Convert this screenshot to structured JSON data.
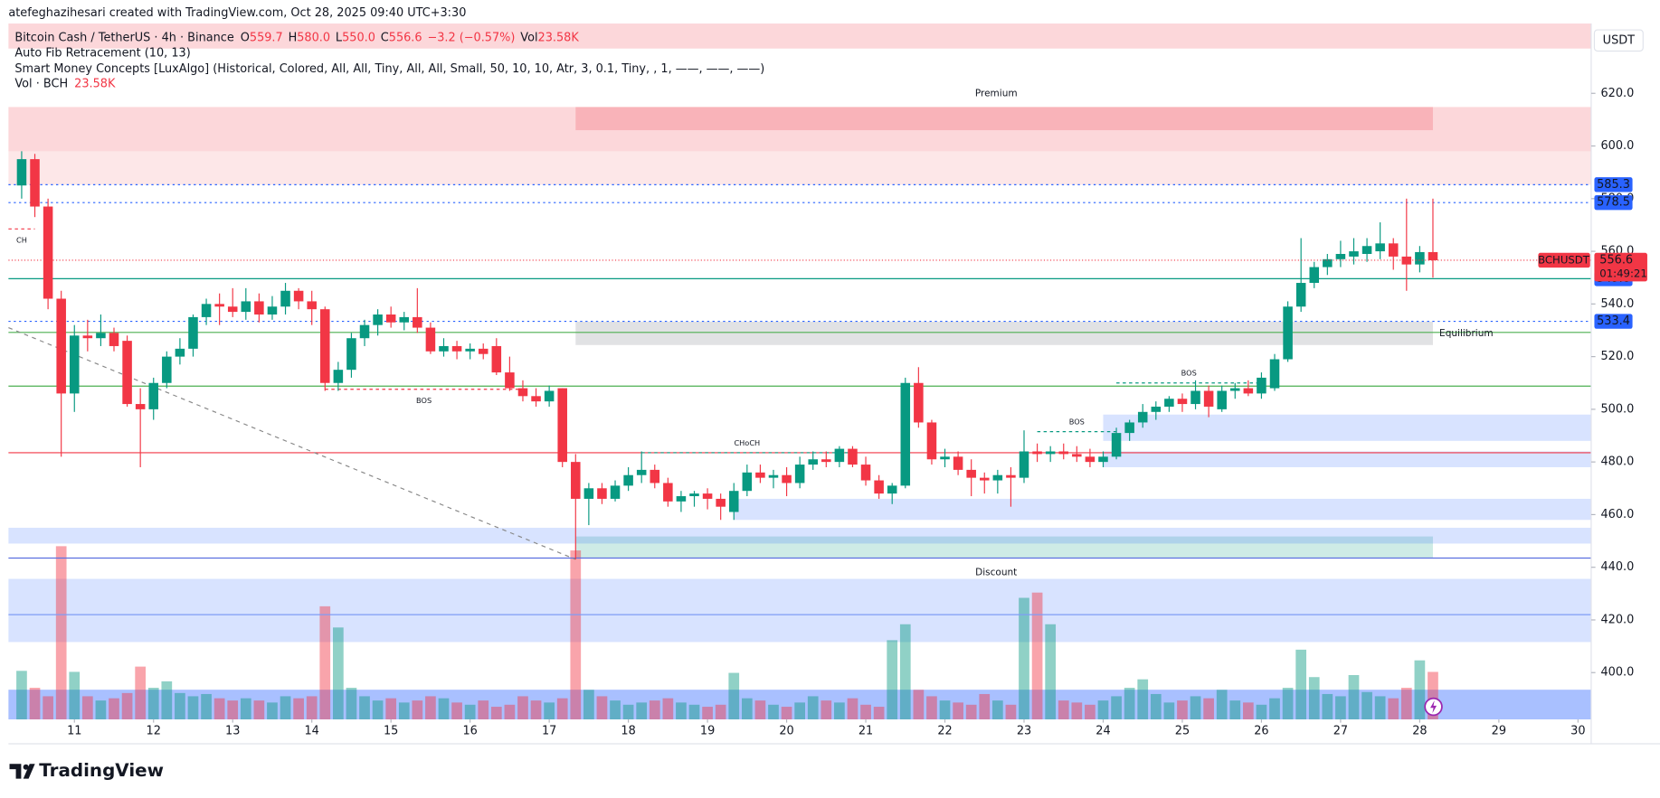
{
  "header": {
    "text": "atefeghazihesari created with TradingView.com, Oct 28, 2025 09:40 UTC+3:30",
    "currency": "USDT",
    "logo": "TradingView"
  },
  "legend": {
    "symbol": "Bitcoin Cash / TetherUS · 4h · Binance",
    "ohlc": [
      {
        "key": "O",
        "value": "559.7"
      },
      {
        "key": "H",
        "value": "580.0"
      },
      {
        "key": "L",
        "value": "550.0"
      },
      {
        "key": "C",
        "value": "556.6"
      }
    ],
    "change": "−3.2 (−0.57%)",
    "vol_key": "Vol",
    "vol_value": "23.58K",
    "indicators": [
      "Auto Fib Retracement (10, 13)",
      "Smart Money Concepts [LuxAlgo] (Historical, Colored, All, All, Tiny, All, All, Small, 50, 10, 10, Atr, 3, 0.1, Tiny, , 1, ——, ——, ——)"
    ],
    "vol_name": "Vol · BCH",
    "vol_line_value": "23.58K"
  },
  "chart_data": {
    "type": "candlestick",
    "up_color": "#089981",
    "down_color": "#f23645",
    "open": [
      585,
      595,
      577,
      542,
      506,
      528,
      527,
      529,
      526,
      502,
      500,
      510,
      520,
      523,
      535,
      540,
      539,
      537,
      541,
      536,
      539,
      545,
      541,
      538,
      510,
      515,
      527,
      532,
      536,
      533,
      535,
      531,
      522,
      524,
      522,
      523,
      524,
      514,
      508,
      505,
      503,
      508,
      480,
      466,
      470,
      466,
      471,
      475,
      477,
      472,
      465,
      467,
      468,
      466,
      461,
      469,
      476,
      474,
      475,
      472,
      479,
      481,
      480,
      485,
      479,
      473,
      468,
      471,
      510,
      495,
      481,
      482,
      477,
      474,
      473,
      475,
      474,
      484,
      483,
      484,
      483,
      482,
      480,
      482,
      491,
      495,
      499,
      501,
      504,
      502,
      507,
      500,
      507,
      508,
      506,
      508,
      519,
      539,
      548,
      554,
      557,
      558,
      559,
      560,
      563,
      558,
      555,
      559.7
    ],
    "high": [
      598,
      597,
      580,
      545,
      532,
      534,
      536,
      531,
      528,
      508,
      512,
      522,
      527,
      536,
      542,
      544,
      546,
      546,
      544,
      543,
      548,
      546,
      545,
      539,
      518,
      529,
      534,
      538,
      539,
      537,
      546,
      533,
      527,
      526,
      525,
      525,
      527,
      520,
      511,
      508,
      509,
      508,
      483,
      472,
      472,
      473,
      478,
      484,
      479,
      474,
      469,
      469,
      470,
      468,
      472,
      479,
      479,
      477,
      478,
      482,
      484,
      484,
      486,
      486,
      482,
      475,
      472,
      512,
      516,
      496,
      485,
      484,
      481,
      476,
      477,
      478,
      492,
      487,
      486,
      487,
      486,
      485,
      484,
      493,
      496,
      502,
      503,
      505,
      506,
      511,
      509,
      509,
      510,
      511,
      514,
      521,
      541,
      565,
      556,
      559,
      564,
      565,
      565,
      571,
      565,
      580,
      562,
      580
    ],
    "low": [
      580,
      573,
      538,
      482,
      499,
      522,
      524,
      522,
      501,
      478,
      496,
      508,
      517,
      520,
      532,
      532,
      535,
      534,
      533,
      534,
      536,
      538,
      532,
      507,
      507,
      512,
      524,
      528,
      531,
      530,
      529,
      521,
      520,
      519,
      519,
      519,
      513,
      507,
      503,
      501,
      501,
      478,
      443,
      456,
      464,
      465,
      469,
      472,
      470,
      463,
      461,
      463,
      462,
      458,
      458,
      467,
      472,
      470,
      467,
      470,
      477,
      478,
      478,
      478,
      471,
      466,
      464,
      470,
      493,
      479,
      478,
      475,
      467,
      468,
      468,
      463,
      472,
      480,
      480,
      481,
      480,
      478,
      478,
      481,
      488,
      493,
      496,
      499,
      499,
      500,
      497,
      499,
      504,
      505,
      504,
      507,
      518,
      537,
      546,
      551,
      554,
      555,
      556,
      557,
      553,
      545,
      552,
      550
    ],
    "close": [
      595,
      577,
      542,
      506,
      528,
      527,
      529,
      524,
      502,
      500,
      510,
      520,
      523,
      535,
      540,
      539,
      537,
      541,
      536,
      539,
      545,
      541,
      538,
      510,
      515,
      527,
      532,
      536,
      533,
      535,
      531,
      522,
      524,
      522,
      523,
      521,
      514,
      508,
      505,
      503,
      507,
      480,
      466,
      470,
      466,
      471,
      475,
      477,
      472,
      465,
      467,
      468,
      466,
      463,
      469,
      476,
      474,
      475,
      472,
      479,
      481,
      480,
      485,
      479,
      473,
      468,
      471,
      510,
      495,
      481,
      482,
      477,
      474,
      473,
      475,
      474,
      484,
      483,
      484,
      483,
      482,
      480,
      482,
      491,
      495,
      499,
      501,
      504,
      502,
      507,
      501,
      507,
      508,
      506,
      512,
      519,
      539,
      548,
      554,
      557,
      559,
      560,
      562,
      563,
      558,
      555,
      559.7,
      556.6
    ],
    "volume": [
      24100,
      15700,
      11500,
      85900,
      23600,
      11500,
      9400,
      10500,
      13100,
      26200,
      15700,
      18900,
      13100,
      11500,
      12600,
      10500,
      9400,
      10500,
      9400,
      8400,
      11500,
      10500,
      11500,
      56100,
      45600,
      15700,
      11500,
      9400,
      10500,
      8400,
      9400,
      11500,
      10500,
      8400,
      7300,
      9400,
      6300,
      7300,
      11500,
      9400,
      8400,
      10500,
      83800,
      14700,
      11500,
      9400,
      7300,
      8400,
      9400,
      10500,
      8400,
      7300,
      6300,
      7300,
      23100,
      10500,
      9400,
      7300,
      6300,
      8400,
      11500,
      9400,
      8400,
      10500,
      7300,
      6300,
      39300,
      47200,
      14700,
      11500,
      9400,
      8400,
      7300,
      12600,
      9400,
      7300,
      60300,
      62900,
      47200,
      9400,
      8400,
      7300,
      9400,
      11500,
      15700,
      19900,
      12600,
      8400,
      9400,
      11500,
      10500,
      14700,
      9400,
      8400,
      7300,
      10500,
      15700,
      34600,
      21000,
      12600,
      11500,
      22000,
      13600,
      11500,
      10500,
      15700,
      29300,
      23580
    ],
    "volume_ylim": [
      0,
      345000
    ],
    "xlim": [
      -1,
      119
    ],
    "xticks": [
      {
        "value": 4,
        "label": "11"
      },
      {
        "value": 10,
        "label": "12"
      },
      {
        "value": 16,
        "label": "13"
      },
      {
        "value": 22,
        "label": "14"
      },
      {
        "value": 28,
        "label": "15"
      },
      {
        "value": 34,
        "label": "16"
      },
      {
        "value": 40,
        "label": "17"
      },
      {
        "value": 46,
        "label": "18"
      },
      {
        "value": 52,
        "label": "19"
      },
      {
        "value": 58,
        "label": "20"
      },
      {
        "value": 64,
        "label": "21"
      },
      {
        "value": 70,
        "label": "22"
      },
      {
        "value": 76,
        "label": "23"
      },
      {
        "value": 82,
        "label": "24"
      },
      {
        "value": 88,
        "label": "25"
      },
      {
        "value": 94,
        "label": "26"
      },
      {
        "value": 100,
        "label": "27"
      },
      {
        "value": 106,
        "label": "28"
      },
      {
        "value": 112,
        "label": "29"
      },
      {
        "value": 118,
        "label": "30"
      }
    ],
    "ylim": [
      382.2,
      646.5
    ],
    "yticks": [
      {
        "value": 400,
        "label": "400.0"
      },
      {
        "value": 420,
        "label": "420.0"
      },
      {
        "value": 440,
        "label": "440.0"
      },
      {
        "value": 460,
        "label": "460.0"
      },
      {
        "value": 480,
        "label": "480.0"
      },
      {
        "value": 500,
        "label": "500.0"
      },
      {
        "value": 520,
        "label": "520.0"
      },
      {
        "value": 540,
        "label": "540.0"
      },
      {
        "value": 560,
        "label": "560.0"
      },
      {
        "value": 580,
        "label": "580.0"
      },
      {
        "value": 600,
        "label": "600.0"
      },
      {
        "value": 620,
        "label": "620.0"
      }
    ],
    "zones": [
      {
        "range": [
          637,
          646.5
        ],
        "x": [
          -1,
          119
        ],
        "color": "rgba(242,54,69,0.2)"
      },
      {
        "range": [
          598,
          614.8
        ],
        "x": [
          -1,
          119
        ],
        "color": "rgba(242,54,69,0.2)"
      },
      {
        "range": [
          606,
          614.8
        ],
        "x": [
          42,
          107
        ],
        "color": "rgba(242,54,69,0.22)"
      },
      {
        "range": [
          585.3,
          598
        ],
        "x": [
          -1,
          119
        ],
        "color": "rgba(242,54,69,0.12)"
      },
      {
        "range": [
          524.4,
          533.3
        ],
        "x": [
          42,
          107
        ],
        "color": "rgba(120,123,134,0.22)"
      },
      {
        "range": [
          443.4,
          451.7
        ],
        "x": [
          42,
          107
        ],
        "color": "rgba(8,153,129,0.2)"
      },
      {
        "range": [
          458,
          466
        ],
        "x": [
          54,
          119
        ],
        "color": "rgba(41,98,255,0.18)"
      },
      {
        "range": [
          449,
          455
        ],
        "x": [
          -1,
          119
        ],
        "color": "rgba(41,98,255,0.18)"
      },
      {
        "range": [
          488,
          498
        ],
        "x": [
          82,
          119
        ],
        "color": "rgba(41,98,255,0.18)"
      },
      {
        "range": [
          478,
          484
        ],
        "x": [
          82,
          119
        ],
        "color": "rgba(41,98,255,0.18)"
      },
      {
        "range": [
          411.6,
          435.6
        ],
        "x": [
          -1,
          119
        ],
        "color": "rgba(41,98,255,0.18)"
      },
      {
        "range": [
          382.2,
          393.5
        ],
        "x": [
          -1,
          119
        ],
        "color": "rgba(41,98,255,0.4)"
      }
    ],
    "lines": [
      {
        "value": 585.3,
        "color": "#2962ff",
        "style": "dotted",
        "tag": true
      },
      {
        "value": 578.5,
        "color": "#2962ff",
        "style": "dotted",
        "tag": true
      },
      {
        "value": 549.6,
        "color": "#089981",
        "style": "solid",
        "tag": true
      },
      {
        "value": 533.4,
        "color": "#2962ff",
        "style": "dotted",
        "tag": true
      },
      {
        "value": 529.2,
        "color": "#4caf50",
        "style": "solid",
        "tag": false
      },
      {
        "value": 508.8,
        "color": "#4caf50",
        "style": "solid",
        "tag": false
      },
      {
        "value": 483.5,
        "color": "#f23645",
        "style": "solid",
        "tag": false
      },
      {
        "value": 443.5,
        "color": "#5b6fe0",
        "style": "solid",
        "tag": false
      },
      {
        "value": 422,
        "color": "#7f9cf5",
        "style": "solid",
        "tag": false
      }
    ],
    "trendline": {
      "x": [
        -1,
        42
      ],
      "y": [
        531,
        443
      ],
      "color": "#888888"
    },
    "structures": [
      {
        "text": "CH",
        "value": 568.5,
        "x": [
          -1,
          1
        ],
        "color": "#f23645"
      },
      {
        "text": "BOS",
        "value": 507.6,
        "x": [
          23,
          38
        ],
        "color": "#f23645"
      },
      {
        "text": "CHoCH",
        "value": 483.5,
        "x": [
          47,
          63
        ],
        "color": "#089981"
      },
      {
        "text": "BOS",
        "value": 491.5,
        "x": [
          77,
          83
        ],
        "color": "#089981"
      },
      {
        "text": "BOS",
        "value": 510,
        "x": [
          83,
          94
        ],
        "color": "#089981"
      }
    ],
    "annotations": [
      {
        "text": "Premium",
        "color": "#f23645"
      },
      {
        "text": "Equilibrium",
        "color": "#b2b5be"
      },
      {
        "text": "Discount",
        "color": "#089981"
      }
    ],
    "last": {
      "symbol": "BCHUSDT",
      "value": 556.6,
      "countdown": "01:49:21",
      "color": "#f23645"
    },
    "tag_color": "#2962ff"
  }
}
